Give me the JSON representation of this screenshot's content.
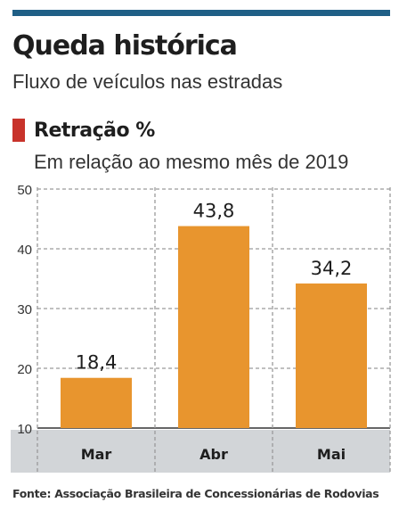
{
  "header": {
    "title": "Queda histórica",
    "subtitle": "Fluxo de veículos nas estradas"
  },
  "legend": {
    "label": "Retração %",
    "swatch_color": "#c8332b"
  },
  "chart_subtitle": "Em relação ao mesmo mês de 2019",
  "source": "Fonte: Associação Brasileira de Concessionárias de Rodovias",
  "colors": {
    "bar": "#e8952e",
    "category_band": "#d2d5d8",
    "top_rule": "#1f5f86"
  },
  "chart_data": {
    "type": "bar",
    "categories": [
      "Mar",
      "Abr",
      "Mai"
    ],
    "values": [
      18.4,
      43.8,
      34.2
    ],
    "value_labels": [
      "18,4",
      "43,8",
      "34,2"
    ],
    "ylim": [
      10,
      50
    ],
    "yticks": [
      10,
      20,
      30,
      40,
      50
    ],
    "grid": true,
    "xlabel": "",
    "ylabel": ""
  }
}
